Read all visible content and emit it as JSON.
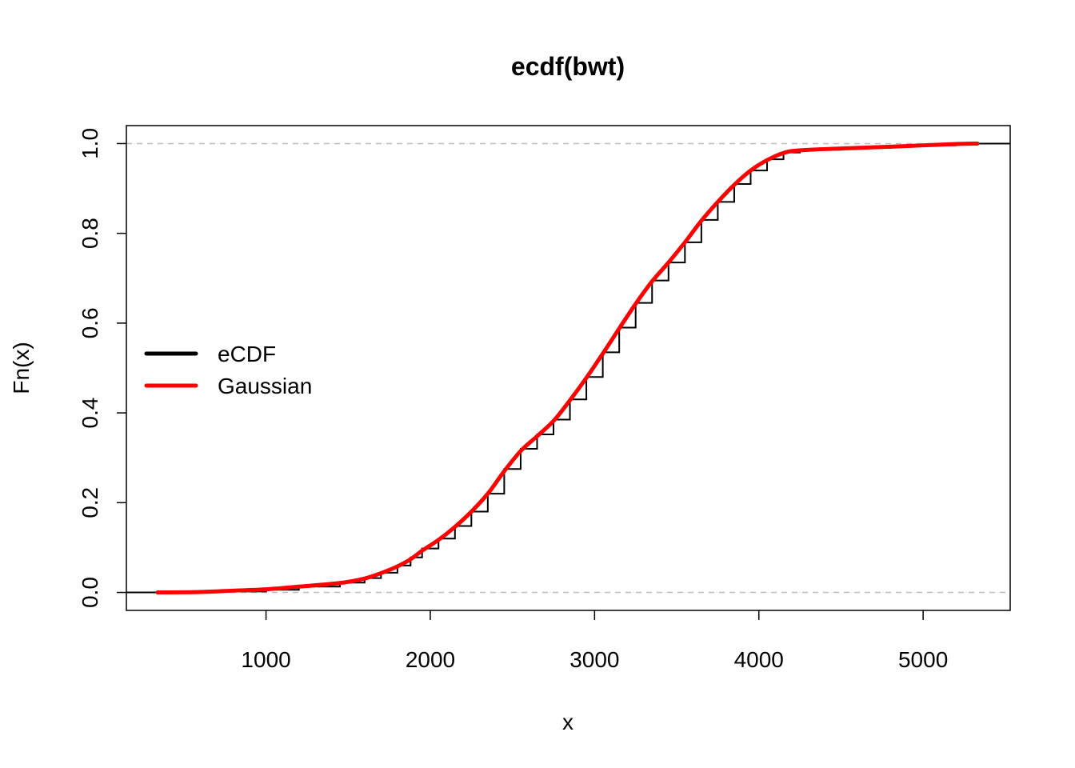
{
  "chart_data": {
    "type": "line",
    "title": "ecdf(bwt)",
    "xlabel": "x",
    "ylabel": "Fn(x)",
    "xlim": [
      150,
      5530
    ],
    "ylim": [
      -0.04,
      1.04
    ],
    "x_ticks": [
      1000,
      2000,
      3000,
      4000,
      5000
    ],
    "y_ticks": [
      0.0,
      0.2,
      0.4,
      0.6,
      0.8,
      1.0
    ],
    "x_tick_labels": [
      "1000",
      "2000",
      "3000",
      "4000",
      "5000"
    ],
    "y_tick_labels": [
      "0.0",
      "0.2",
      "0.4",
      "0.6",
      "0.8",
      "1.0"
    ],
    "reference_lines": [
      0,
      1
    ],
    "grid": false,
    "legend": {
      "position": "left",
      "entries": [
        {
          "label": "eCDF",
          "color": "#000000"
        },
        {
          "label": "Gaussian",
          "color": "#ff0000"
        }
      ]
    },
    "series": [
      {
        "name": "eCDF",
        "color": "#000000",
        "step": true,
        "x": [
          5,
          340,
          600,
          1000,
          1200,
          1450,
          1600,
          1700,
          1800,
          1880,
          1950,
          2050,
          2150,
          2250,
          2350,
          2450,
          2550,
          2650,
          2750,
          2850,
          2950,
          3050,
          3150,
          3250,
          3350,
          3450,
          3550,
          3650,
          3750,
          3850,
          3950,
          4050,
          4150,
          4250,
          4500,
          4800,
          5000,
          5200,
          5330,
          5600
        ],
        "y": [
          0.0,
          0.0,
          0.002,
          0.006,
          0.013,
          0.022,
          0.032,
          0.044,
          0.06,
          0.078,
          0.098,
          0.12,
          0.148,
          0.18,
          0.22,
          0.275,
          0.32,
          0.352,
          0.385,
          0.43,
          0.48,
          0.535,
          0.59,
          0.645,
          0.695,
          0.735,
          0.78,
          0.83,
          0.87,
          0.91,
          0.94,
          0.965,
          0.98,
          0.986,
          0.99,
          0.994,
          0.996,
          0.999,
          1.0,
          1.0
        ]
      },
      {
        "name": "Gaussian",
        "color": "#ff0000",
        "x": [
          340,
          600,
          800,
          1000,
          1200,
          1450,
          1600,
          1700,
          1800,
          1880,
          1950,
          2050,
          2150,
          2250,
          2350,
          2450,
          2550,
          2650,
          2750,
          2850,
          2950,
          3050,
          3150,
          3250,
          3350,
          3450,
          3550,
          3650,
          3750,
          3850,
          3950,
          4050,
          4150,
          4250,
          4500,
          4800,
          5000,
          5200,
          5330
        ],
        "y": [
          0.0,
          0.001,
          0.004,
          0.007,
          0.013,
          0.021,
          0.031,
          0.043,
          0.058,
          0.074,
          0.093,
          0.117,
          0.146,
          0.18,
          0.22,
          0.27,
          0.315,
          0.348,
          0.382,
          0.428,
          0.478,
          0.532,
          0.588,
          0.643,
          0.693,
          0.735,
          0.78,
          0.828,
          0.87,
          0.908,
          0.94,
          0.963,
          0.979,
          0.985,
          0.989,
          0.993,
          0.996,
          0.999,
          1.0
        ]
      }
    ]
  }
}
